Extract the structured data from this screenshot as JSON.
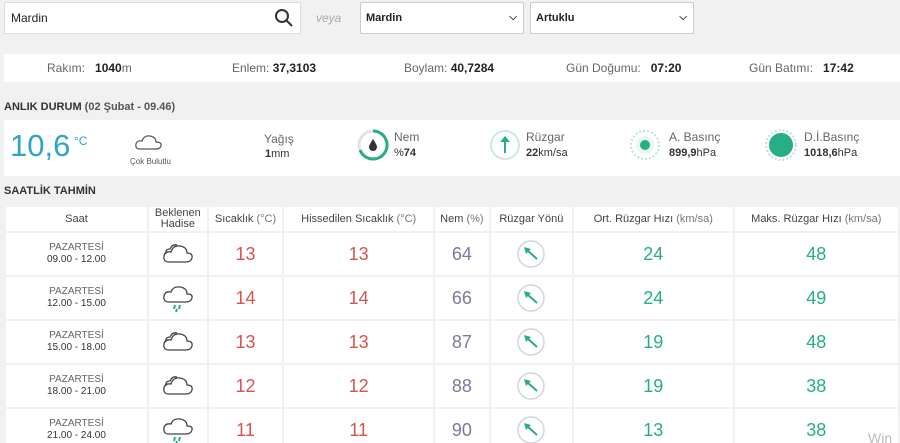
{
  "search": {
    "value": "Mardin",
    "placeholder": ""
  },
  "veya": "veya",
  "selects": {
    "il": "Mardin",
    "ilce": "Artuklu"
  },
  "info": {
    "rakim_label": "Rakım:",
    "rakim_value": "1040",
    "rakim_unit": "m",
    "enlem_label": "Enlem:",
    "enlem_value": "37,3103",
    "boylam_label": "Boylam:",
    "boylam_value": "40,7284",
    "dogum_label": "Gün Doğumu:",
    "dogum_value": "07:20",
    "batim_label": "Gün Batımı:",
    "batim_value": "17:42"
  },
  "anlik": {
    "title": "ANLIK DURUM",
    "subtitle": "(02 Şubat - 09.46)",
    "temp": "10,6",
    "temp_unit": "°C",
    "condition": "Çok Bulutlu",
    "yagis_label": "Yağış",
    "yagis_value": "1",
    "yagis_unit": "mm",
    "nem_label": "Nem",
    "nem_prefix": "%",
    "nem_value": "74",
    "ruzgar_label": "Rüzgar",
    "ruzgar_value": "22",
    "ruzgar_unit": "km/sa",
    "abasinc_label": "A. Basınç",
    "abasinc_value": "899,9",
    "abasinc_unit": "hPa",
    "dibasinc_label": "D.İ.Basınç",
    "dibasinc_value": "1018,6",
    "dibasinc_unit": "hPa"
  },
  "saatlik": {
    "title": "SAATLİK TAHMİN",
    "headers": {
      "saat": "Saat",
      "hadise1": "Beklenen",
      "hadise2": "Hadise",
      "sicaklik": "Sıcaklık",
      "sicaklik_u": "(°C)",
      "hissedilen": "Hissedilen Sıcaklık",
      "hissedilen_u": "(°C)",
      "nem": "Nem",
      "nem_u": "(%)",
      "yon": "Rüzgar Yönü",
      "ort": "Ort. Rüzgar Hızı",
      "ort_u": "(km/sa)",
      "maks": "Maks. Rüzgar Hızı",
      "maks_u": "(km/sa)"
    },
    "rows": [
      {
        "day": "PAZARTESİ",
        "time": "09.00 - 12.00",
        "icon": "cloud-icon",
        "t": "13",
        "h": "13",
        "nem": "64",
        "ort": "24",
        "maks": "48"
      },
      {
        "day": "PAZARTESİ",
        "time": "12.00 - 15.00",
        "icon": "rain-cloud-icon",
        "t": "14",
        "h": "14",
        "nem": "66",
        "ort": "24",
        "maks": "49"
      },
      {
        "day": "PAZARTESİ",
        "time": "15.00 - 18.00",
        "icon": "cloud-icon",
        "t": "13",
        "h": "13",
        "nem": "87",
        "ort": "19",
        "maks": "48"
      },
      {
        "day": "PAZARTESİ",
        "time": "18.00 - 21.00",
        "icon": "cloud-icon",
        "t": "12",
        "h": "12",
        "nem": "88",
        "ort": "19",
        "maks": "38"
      },
      {
        "day": "PAZARTESİ",
        "time": "21.00 - 24.00",
        "icon": "rain-cloud-icon",
        "t": "11",
        "h": "11",
        "nem": "90",
        "ort": "13",
        "maks": "38"
      }
    ]
  },
  "colors": {
    "accent_blue": "#2fa4c9",
    "temp_red": "#d9534f",
    "wind_green": "#27ae87"
  },
  "watermark": "Win"
}
